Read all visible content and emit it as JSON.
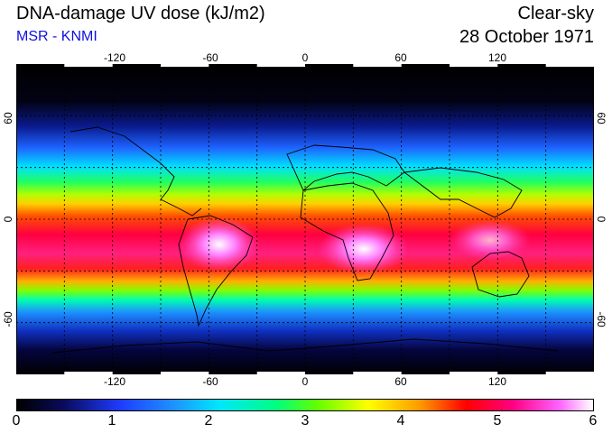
{
  "header": {
    "title": "DNA-damage UV dose (kJ/m2)",
    "subtitle": "MSR - KNMI",
    "condition": "Clear-sky",
    "date": "28 October 1971"
  },
  "map": {
    "projection": "equirectangular",
    "lon_range": [
      -180,
      180
    ],
    "lat_range": [
      -90,
      90
    ],
    "lon_ticks": [
      "-120",
      "-60",
      "0",
      "60",
      "120"
    ],
    "lat_ticks": [
      "60",
      "0",
      "-60"
    ],
    "gridlines": "dotted, every 30 degrees",
    "field": "DNA-damage UV dose",
    "max_region": "south tropics (~15S), Andes and southern Africa near 6",
    "min_region": "polar latitudes near 0"
  },
  "colorbar": {
    "ticks": [
      "0",
      "1",
      "2",
      "3",
      "4",
      "5",
      "6"
    ],
    "colors": [
      "#000000",
      "#1e3cff",
      "#00e6ff",
      "#60ff00",
      "#ffff00",
      "#ff0000",
      "#ff0080",
      "#ffffff"
    ]
  }
}
